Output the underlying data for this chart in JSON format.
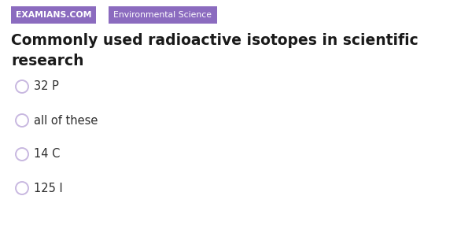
{
  "background_color": "#ffffff",
  "tag1_text": "EXAMIANS.COM",
  "tag1_bg": "#8b6bbf",
  "tag1_fg": "#ffffff",
  "tag2_text": "Environmental Science",
  "tag2_bg": "#8b6bbf",
  "tag2_fg": "#ffffff",
  "title_line1": "Commonly used radioactive isotopes in scientific",
  "title_line2": "research",
  "title_color": "#1a1a1a",
  "options": [
    "32 P",
    "all of these",
    "14 C",
    "125 I"
  ],
  "option_color": "#2d2d2d",
  "circle_edge": "#c8b8e0",
  "circle_face": "#ffffff",
  "title_fontsize": 13.5,
  "option_fontsize": 10.5,
  "tag_fontsize": 7.8,
  "fig_width": 6.0,
  "fig_height": 3.1,
  "dpi": 100
}
